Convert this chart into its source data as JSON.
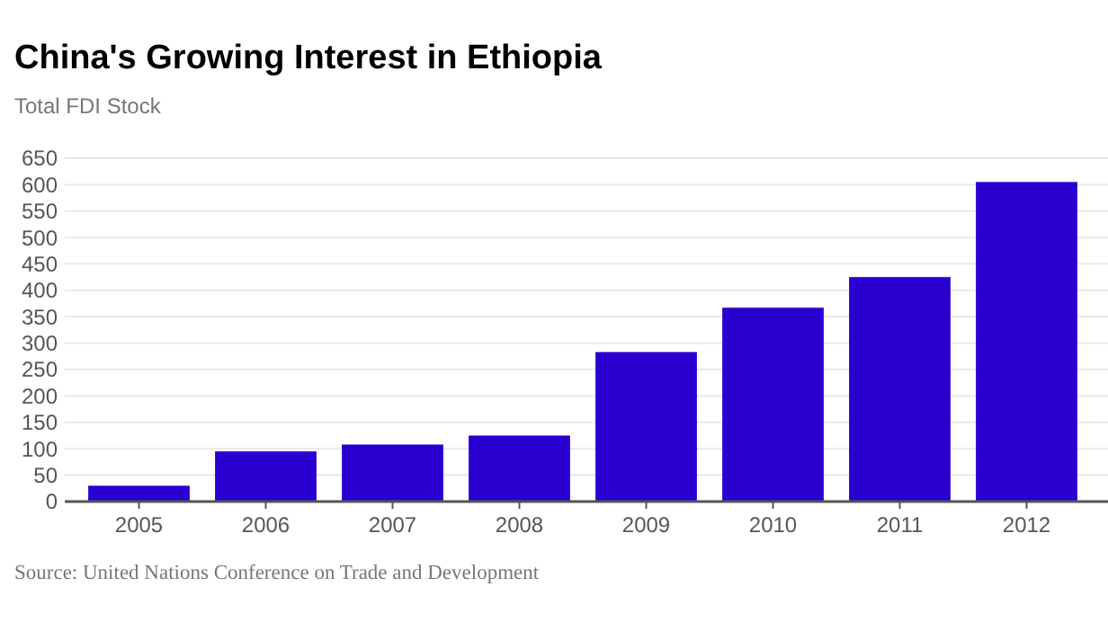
{
  "chart_data": {
    "type": "bar",
    "title": "China's Growing Interest in Ethiopia",
    "subtitle": "Total FDI Stock",
    "categories": [
      "2005",
      "2006",
      "2007",
      "2008",
      "2009",
      "2010",
      "2011",
      "2012"
    ],
    "values": [
      30,
      95,
      108,
      125,
      283,
      367,
      425,
      605
    ],
    "color": "#2a00d0",
    "ylim": [
      0,
      650
    ],
    "yticks": [
      0,
      50,
      100,
      150,
      200,
      250,
      300,
      350,
      400,
      450,
      500,
      550,
      600,
      650
    ],
    "grid": "y",
    "annotations": [
      "Source: United Nations Conference on Trade and Development"
    ]
  }
}
